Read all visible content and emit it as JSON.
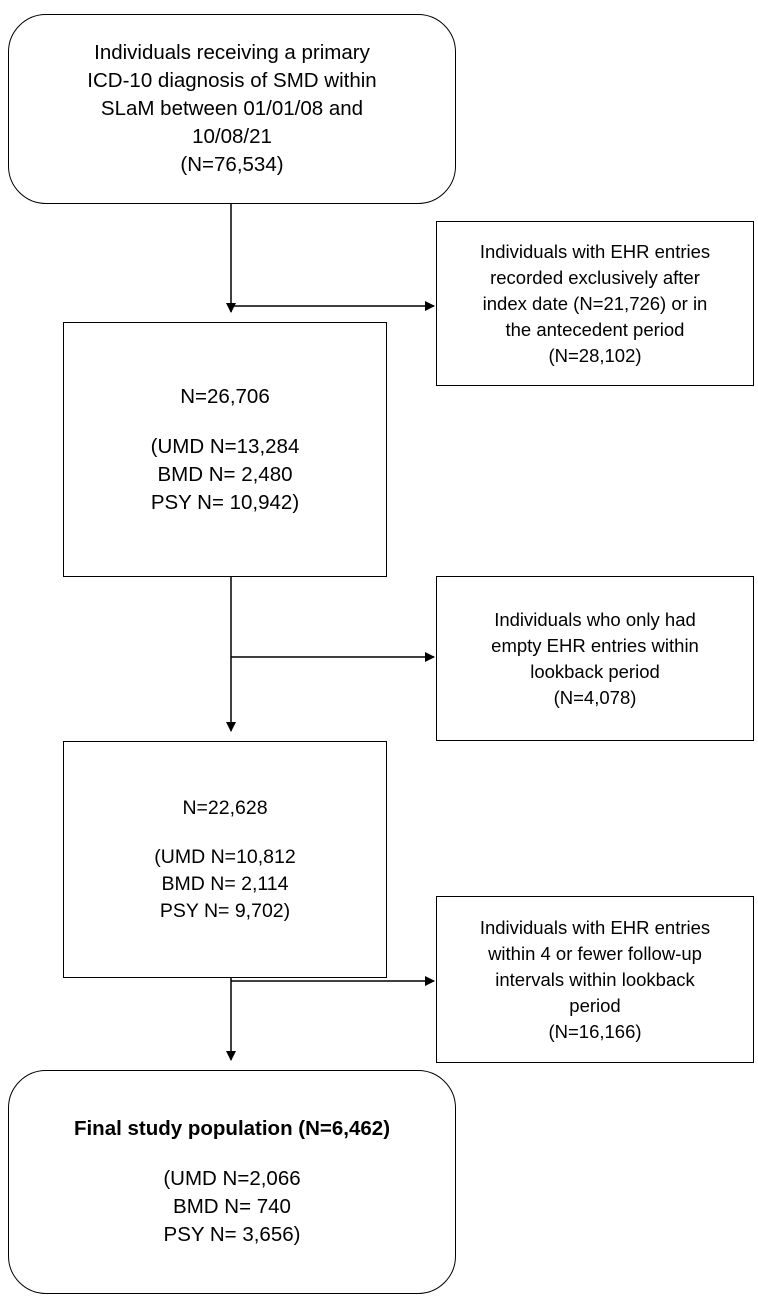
{
  "box1": {
    "lines": [
      "Individuals receiving a primary",
      "ICD-10 diagnosis of SMD within",
      "SLaM between 01/01/08 and",
      "10/08/21",
      "(N=76,534)"
    ]
  },
  "excl1": {
    "lines": [
      "Individuals with EHR entries",
      "recorded exclusively after",
      "index date (N=21,726) or in",
      "the antecedent period",
      "(N=28,102)"
    ]
  },
  "box2": {
    "total": "N=26,706",
    "lines": [
      "(UMD N=13,284",
      "BMD N= 2,480",
      "PSY N= 10,942)"
    ]
  },
  "excl2": {
    "lines": [
      "Individuals who only had",
      "empty EHR entries within",
      "lookback period",
      "(N=4,078)"
    ]
  },
  "box3": {
    "total": "N=22,628",
    "lines": [
      "(UMD N=10,812",
      "BMD N= 2,114",
      "PSY N= 9,702)"
    ]
  },
  "excl3": {
    "lines": [
      "Individuals with EHR entries",
      "within 4 or fewer follow-up",
      "intervals within lookback",
      "period",
      "(N=16,166)"
    ]
  },
  "final": {
    "title": "Final study population (N=6,462)",
    "lines": [
      "(UMD N=2,066",
      "BMD N= 740",
      "PSY N= 3,656)"
    ]
  }
}
